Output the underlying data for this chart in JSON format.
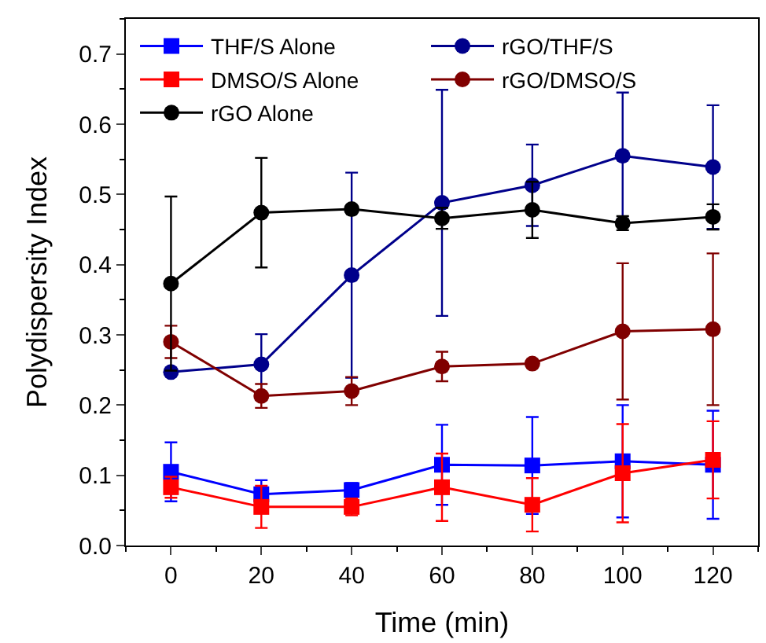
{
  "chart_data": {
    "type": "line",
    "xlabel": "Time (min)",
    "ylabel": "Polydispersity Index",
    "x": [
      0,
      20,
      40,
      60,
      80,
      100,
      120
    ],
    "xlim": [
      -10,
      130
    ],
    "xticks": [
      0,
      20,
      40,
      60,
      80,
      100,
      120
    ],
    "ylim": [
      0,
      0.75
    ],
    "yticks": [
      {
        "value": 0,
        "label": "0.0"
      },
      0.1,
      0.2,
      0.3,
      0.4,
      0.5,
      0.6,
      0.7
    ],
    "legend": "top left",
    "series": [
      {
        "name": "THF/S Alone",
        "color": "#0000ff",
        "marker": "square",
        "values": [
          0.105,
          0.073,
          0.079,
          0.115,
          0.114,
          0.12,
          0.115
        ],
        "errors": [
          0.042,
          0.02,
          0.01,
          0.057,
          0.069,
          0.08,
          0.077
        ]
      },
      {
        "name": "rGO/THF/S",
        "color": "#00008b",
        "marker": "circle",
        "values": [
          0.247,
          0.258,
          0.385,
          0.488,
          0.513,
          0.555,
          0.539
        ],
        "errors": [
          0.004,
          0.043,
          0.146,
          0.161,
          0.058,
          0.09,
          0.088
        ]
      },
      {
        "name": "DMSO/S Alone",
        "color": "#ff0000",
        "marker": "square",
        "values": [
          0.083,
          0.055,
          0.055,
          0.083,
          0.058,
          0.103,
          0.122
        ],
        "errors": [
          0.015,
          0.03,
          0.012,
          0.048,
          0.038,
          0.07,
          0.055
        ]
      },
      {
        "name": "rGO/DMSO/S",
        "color": "#800000",
        "marker": "circle",
        "values": [
          0.29,
          0.213,
          0.22,
          0.255,
          0.259,
          0.305,
          0.308
        ],
        "errors": [
          0.023,
          0.017,
          0.02,
          0.021,
          0.005,
          0.097,
          0.108
        ]
      },
      {
        "name": "rGO Alone",
        "color": "#000000",
        "marker": "circle",
        "values": [
          0.373,
          0.474,
          0.479,
          0.466,
          0.478,
          0.459,
          0.468
        ],
        "errors": [
          0.124,
          0.078,
          0.005,
          0.015,
          0.04,
          0.01,
          0.018
        ]
      }
    ]
  }
}
